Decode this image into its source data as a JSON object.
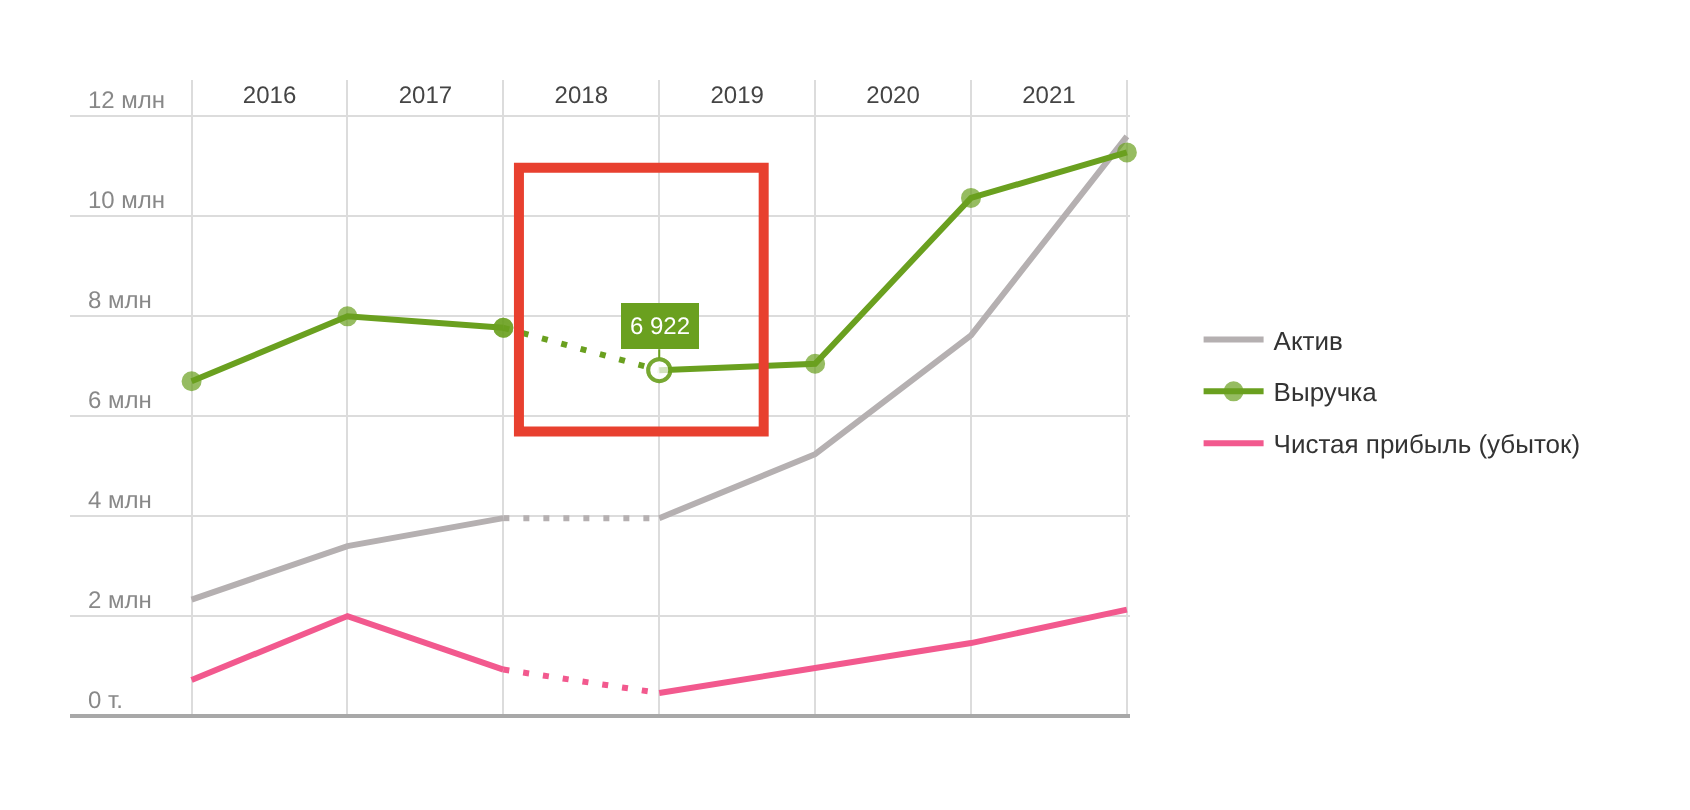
{
  "chart_data": {
    "type": "line",
    "xlim": [
      2015.22,
      2022.02
    ],
    "ylim": [
      0,
      12.73
    ],
    "xticks": [
      {
        "value": 2016,
        "label": null
      },
      {
        "value": 2016.5,
        "label": "2016"
      },
      {
        "value": 2017,
        "label": null
      },
      {
        "value": 2017.5,
        "label": "2017"
      },
      {
        "value": 2018,
        "label": null
      },
      {
        "value": 2018.5,
        "label": "2018"
      },
      {
        "value": 2019,
        "label": null
      },
      {
        "value": 2019.5,
        "label": "2019"
      },
      {
        "value": 2020,
        "label": null
      },
      {
        "value": 2020.5,
        "label": "2020"
      },
      {
        "value": 2021,
        "label": null
      },
      {
        "value": 2021.5,
        "label": "2021"
      },
      {
        "value": 2022,
        "label": null
      }
    ],
    "yticks": [
      {
        "value": 0,
        "label": "0 т."
      },
      {
        "value": 2,
        "label": "2 млн"
      },
      {
        "value": 4,
        "label": "4 млн"
      },
      {
        "value": 6,
        "label": "6 млн"
      },
      {
        "value": 8,
        "label": "8 млн"
      },
      {
        "value": 10,
        "label": "10 млн"
      },
      {
        "value": 12,
        "label": "12 млн"
      }
    ],
    "series": [
      {
        "name": "Актив",
        "color": "#b5b0b1",
        "x": [
          2016,
          2017,
          2018
        ],
        "values": [
          2.33,
          3.4,
          3.96
        ],
        "line_style": "solid",
        "marker": "none"
      },
      {
        "color": "#b5b0b1",
        "x": [
          2018,
          2019
        ],
        "values": [
          3.96,
          3.96
        ],
        "line_style": "dotted",
        "marker": "none"
      },
      {
        "color": "#b5b0b1",
        "x": [
          2019,
          2020,
          2021,
          2022
        ],
        "values": [
          3.96,
          5.24,
          7.62,
          11.6
        ],
        "line_style": "solid",
        "marker": "none"
      },
      {
        "name": "Выручка",
        "color": "#6aa01f",
        "x": [
          2016,
          2017,
          2018
        ],
        "values": [
          6.7,
          8.0,
          7.77
        ],
        "line_style": "solid",
        "marker": "circle"
      },
      {
        "color": "#6aa01f",
        "x": [
          2018,
          2019
        ],
        "values": [
          7.77,
          6.922
        ],
        "line_style": "dotted",
        "marker": "circle"
      },
      {
        "color": "#6aa01f",
        "x": [
          2019,
          2020,
          2021,
          2022
        ],
        "values": [
          6.922,
          7.05,
          10.37,
          11.28
        ],
        "line_style": "solid",
        "marker": "circle"
      },
      {
        "name": "Чистая прибыль (убыток)",
        "color": "#f2598e",
        "x": [
          2016,
          2017,
          2018
        ],
        "values": [
          0.72,
          2.0,
          0.93
        ],
        "line_style": "solid",
        "marker": "none"
      },
      {
        "color": "#f2598e",
        "x": [
          2018,
          2019
        ],
        "values": [
          0.93,
          0.46
        ],
        "line_style": "dotted",
        "marker": "none"
      },
      {
        "color": "#f2598e",
        "x": [
          2019,
          2020,
          2021,
          2022
        ],
        "values": [
          0.46,
          0.96,
          1.46,
          2.13
        ],
        "line_style": "solid",
        "marker": "none"
      }
    ],
    "annotations": [
      {
        "text": "6 922",
        "x": 2019,
        "y": 6.922
      }
    ],
    "grid": true,
    "legend": "right"
  }
}
